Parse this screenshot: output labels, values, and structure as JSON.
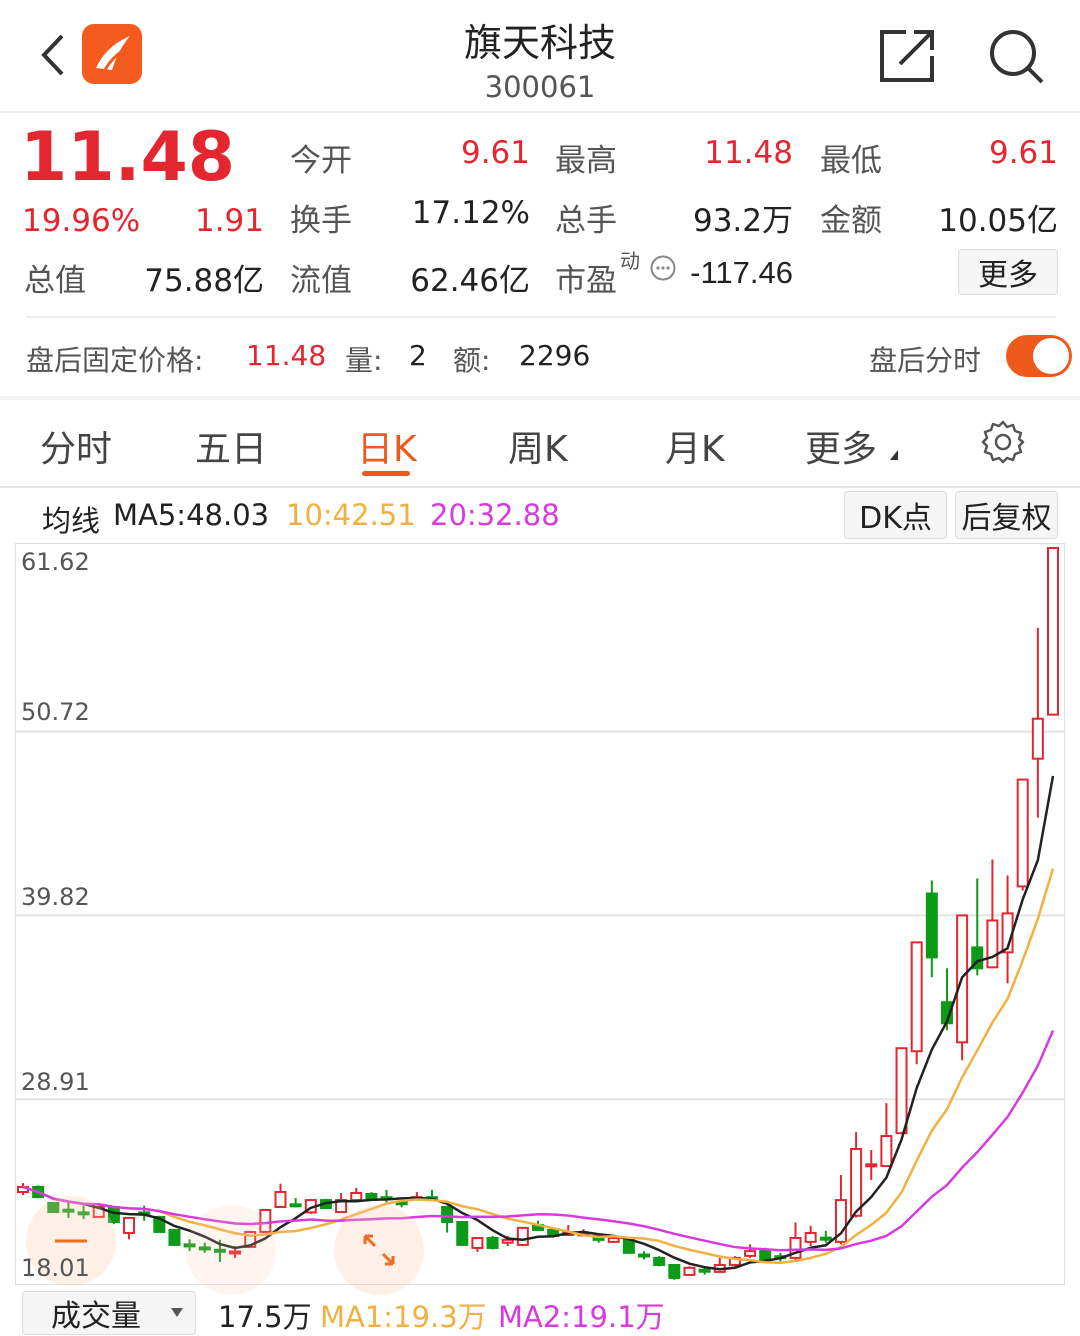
{
  "header": {
    "title": "旗天科技",
    "code": "300061",
    "back_icon": "chevron-left-icon",
    "logo_icon": "app-logo-icon",
    "share_icon": "share-icon",
    "search_icon": "search-icon"
  },
  "quote": {
    "price": "11.48",
    "change_pct": "19.96%",
    "change": "1.91",
    "rows": [
      [
        {
          "label": "今开",
          "value": "9.61",
          "red": true
        },
        {
          "label": "最高",
          "value": "11.48",
          "red": true
        },
        {
          "label": "最低",
          "value": "9.61",
          "red": true
        }
      ],
      [
        {
          "label": "换手",
          "value": "17.12%"
        },
        {
          "label": "总手",
          "value": "93.2万"
        },
        {
          "label": "金额",
          "value": "10.05亿"
        }
      ],
      [
        {
          "label": "流值",
          "value": "62.46亿"
        },
        {
          "label": "市盈",
          "sup": "动",
          "value": "-117.46"
        }
      ]
    ],
    "total_label": "总值",
    "total_value": "75.88亿",
    "more_label": "更多"
  },
  "after_hours": {
    "label": "盘后固定价格:",
    "price": "11.48",
    "vol_label": "量:",
    "vol": "2",
    "amt_label": "额:",
    "amt": "2296",
    "toggle_label": "盘后分时",
    "toggle_on": true
  },
  "tabs": [
    {
      "label": "分时"
    },
    {
      "label": "五日"
    },
    {
      "label": "日K",
      "active": true
    },
    {
      "label": "周K"
    },
    {
      "label": "月K"
    },
    {
      "label": "更多"
    }
  ],
  "ma_bar": {
    "prefix": "均线",
    "ma5": "MA5:48.03",
    "ma10": "10:42.51",
    "ma20": "20:32.88",
    "dk_label": "DK点",
    "adjust_label": "后复权"
  },
  "colors": {
    "up": "#e3262f",
    "down": "#0c9a18",
    "ma5": "#222222",
    "ma10": "#f2b040",
    "ma20": "#d83ae0",
    "accent": "#f0591c"
  },
  "volume_bar": {
    "select": "成交量",
    "vol": "17.5万",
    "ma1": "MA1:19.3万",
    "ma2": "MA2:19.1万"
  },
  "chart_data": {
    "type": "candlestick",
    "y_ticks": [
      "61.62",
      "50.72",
      "39.82",
      "28.91",
      "18.01"
    ],
    "ylim": [
      18.01,
      61.62
    ],
    "grid": true,
    "moving_averages": [
      {
        "name": "MA5",
        "period": 5
      },
      {
        "name": "MA10",
        "period": 10
      },
      {
        "name": "MA20",
        "period": 20
      }
    ],
    "ohlc": [
      [
        23.41,
        23.94,
        23.23,
        23.71
      ],
      [
        23.71,
        23.8,
        23.05,
        23.11
      ],
      [
        22.76,
        22.8,
        22.2,
        22.22
      ],
      [
        22.36,
        22.82,
        21.87,
        22.32
      ],
      [
        22.2,
        22.6,
        21.8,
        22.15
      ],
      [
        21.93,
        22.76,
        21.9,
        22.52
      ],
      [
        22.52,
        22.6,
        21.5,
        21.63
      ],
      [
        20.98,
        21.9,
        20.6,
        21.87
      ],
      [
        22.2,
        22.6,
        21.7,
        22.15
      ],
      [
        21.93,
        22.0,
        21.0,
        21.04
      ],
      [
        21.16,
        21.2,
        20.2,
        20.27
      ],
      [
        20.3,
        20.6,
        19.9,
        20.25
      ],
      [
        20.12,
        20.4,
        19.8,
        20.08
      ],
      [
        19.98,
        20.57,
        19.26,
        19.95
      ],
      [
        19.85,
        20.2,
        19.5,
        19.88
      ],
      [
        20.15,
        21.1,
        20.1,
        21.04
      ],
      [
        21.04,
        22.4,
        21.0,
        22.34
      ],
      [
        22.52,
        23.9,
        22.5,
        23.41
      ],
      [
        22.68,
        23.05,
        22.5,
        22.62
      ],
      [
        22.2,
        23.0,
        22.1,
        22.93
      ],
      [
        22.93,
        23.0,
        22.4,
        22.46
      ],
      [
        22.22,
        23.35,
        22.2,
        22.93
      ],
      [
        22.93,
        23.65,
        22.9,
        23.35
      ],
      [
        23.29,
        23.4,
        23.0,
        23.05
      ],
      [
        23.1,
        23.53,
        22.8,
        23.05
      ],
      [
        22.8,
        23.0,
        22.5,
        22.76
      ],
      [
        23.0,
        23.4,
        22.9,
        23.1
      ],
      [
        23.1,
        23.53,
        22.9,
        23.05
      ],
      [
        22.52,
        22.6,
        21.0,
        21.63
      ],
      [
        21.63,
        21.7,
        20.2,
        20.27
      ],
      [
        20.09,
        20.7,
        19.85,
        20.68
      ],
      [
        20.68,
        20.8,
        20.0,
        20.09
      ],
      [
        20.4,
        20.8,
        20.2,
        20.57
      ],
      [
        20.27,
        21.3,
        20.2,
        21.28
      ],
      [
        21.45,
        21.7,
        21.1,
        21.16
      ],
      [
        21.16,
        21.3,
        20.7,
        20.8
      ],
      [
        20.86,
        21.45,
        20.8,
        21.04
      ],
      [
        20.9,
        21.2,
        20.8,
        20.95
      ],
      [
        20.8,
        20.9,
        20.4,
        20.57
      ],
      [
        20.45,
        20.8,
        20.4,
        20.68
      ],
      [
        20.57,
        20.6,
        19.75,
        19.8
      ],
      [
        19.7,
        19.9,
        19.4,
        19.68
      ],
      [
        19.5,
        19.6,
        19.0,
        19.08
      ],
      [
        19.08,
        19.1,
        18.2,
        18.31
      ],
      [
        18.49,
        19.0,
        18.45,
        18.91
      ],
      [
        18.8,
        19.0,
        18.5,
        18.76
      ],
      [
        18.67,
        19.5,
        18.6,
        19.08
      ],
      [
        19.08,
        19.6,
        19.0,
        19.5
      ],
      [
        19.62,
        20.3,
        19.5,
        19.9
      ],
      [
        19.97,
        20.1,
        19.3,
        19.38
      ],
      [
        19.6,
        19.8,
        19.3,
        19.55
      ],
      [
        19.5,
        21.6,
        19.26,
        20.68
      ],
      [
        20.45,
        21.4,
        20.2,
        20.98
      ],
      [
        20.7,
        21.1,
        20.4,
        20.65
      ],
      [
        20.45,
        24.42,
        20.3,
        22.93
      ],
      [
        22.0,
        26.96,
        21.9,
        25.96
      ],
      [
        25.0,
        25.9,
        24.12,
        25.05
      ],
      [
        24.95,
        28.68,
        24.9,
        26.73
      ],
      [
        26.9,
        31.94,
        26.9,
        31.94
      ],
      [
        31.76,
        38.22,
        30.99,
        38.22
      ],
      [
        41.12,
        41.89,
        36.15,
        37.33
      ],
      [
        34.67,
        36.68,
        33.01,
        33.42
      ],
      [
        32.29,
        39.82,
        31.23,
        39.82
      ],
      [
        37.92,
        42.01,
        36.26,
        36.68
      ],
      [
        36.74,
        43.14,
        36.74,
        39.52
      ],
      [
        37.63,
        42.19,
        35.79,
        39.94
      ],
      [
        41.54,
        47.88,
        41.3,
        47.88
      ],
      [
        49.12,
        56.88,
        45.62,
        51.49
      ],
      [
        51.73,
        61.62,
        51.73,
        61.62
      ]
    ]
  },
  "overlay": {
    "zoom_out_icon": "minus-icon",
    "expand_icon": "expand-arrows-icon"
  }
}
